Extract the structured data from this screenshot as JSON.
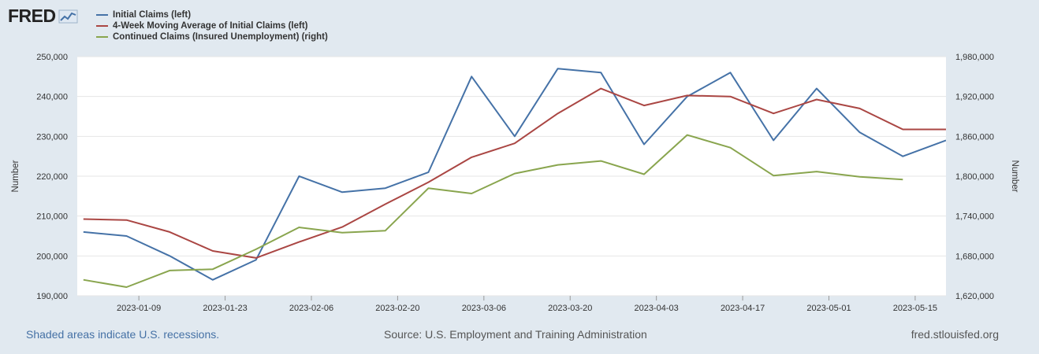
{
  "logo": {
    "text": "FRED",
    "icon": "chart-line-icon"
  },
  "footer": {
    "recession_note": "Shaded areas indicate U.S. recessions.",
    "source": "Source: U.S. Employment and Training Administration",
    "site": "fred.stlouisfed.org"
  },
  "colors": {
    "background": "#e1e9f0",
    "plot_background": "#ffffff",
    "initial_claims": "#4572a7",
    "moving_average": "#aa4643",
    "continued_claims": "#89a54e"
  },
  "chart_data": {
    "type": "line",
    "title": "",
    "xlabel": "",
    "ylabel_left": "Number",
    "ylabel_right": "Number",
    "ylim_left": [
      190000,
      250000
    ],
    "ylim_right": [
      1620000,
      1980000
    ],
    "yticks_left": [
      "190,000",
      "200,000",
      "210,000",
      "220,000",
      "230,000",
      "240,000",
      "250,000"
    ],
    "yticks_right": [
      "1,620,000",
      "1,680,000",
      "1,740,000",
      "1,800,000",
      "1,860,000",
      "1,920,000",
      "1,980,000"
    ],
    "xticks": [
      "2023-01-09",
      "2023-01-23",
      "2023-02-06",
      "2023-02-20",
      "2023-03-06",
      "2023-03-20",
      "2023-04-03",
      "2023-04-17",
      "2023-05-01",
      "2023-05-15"
    ],
    "grid": true,
    "legend_position": "top-left",
    "x": [
      "2022-12-31",
      "2023-01-07",
      "2023-01-14",
      "2023-01-21",
      "2023-01-28",
      "2023-02-04",
      "2023-02-11",
      "2023-02-18",
      "2023-02-25",
      "2023-03-04",
      "2023-03-11",
      "2023-03-18",
      "2023-03-25",
      "2023-04-01",
      "2023-04-08",
      "2023-04-15",
      "2023-04-22",
      "2023-04-29",
      "2023-05-06",
      "2023-05-13",
      "2023-05-20"
    ],
    "series": [
      {
        "name": "Initial Claims (left)",
        "axis": "left",
        "color": "#4572a7",
        "values": [
          206000,
          205000,
          200000,
          194000,
          199000,
          220000,
          216000,
          217000,
          221000,
          245000,
          230000,
          247000,
          246000,
          228000,
          240000,
          246000,
          229000,
          242000,
          231000,
          225000,
          229000
        ]
      },
      {
        "name": "4-Week Moving Average of Initial Claims (left)",
        "axis": "left",
        "color": "#aa4643",
        "values": [
          209250,
          209000,
          206000,
          201250,
          199500,
          203500,
          207250,
          213000,
          218500,
          224750,
          228250,
          235750,
          242000,
          237750,
          240250,
          240000,
          235750,
          239250,
          237000,
          231750,
          231750
        ]
      },
      {
        "name": "Continued Claims (Insured Unemployment) (right)",
        "axis": "right",
        "color": "#89a54e",
        "values": [
          1644000,
          1633000,
          1658000,
          1660000,
          1690000,
          1723000,
          1715000,
          1718000,
          1782000,
          1774000,
          1804000,
          1817000,
          1823000,
          1803000,
          1862000,
          1843000,
          1801000,
          1807000,
          1799000,
          1795000,
          null
        ]
      }
    ]
  }
}
